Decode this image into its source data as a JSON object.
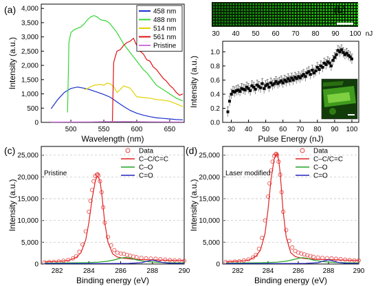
{
  "chart_data": [
    {
      "type": "line",
      "panel_label": "(a)",
      "xlabel": "Wavelength (nm)",
      "ylabel": "Intensity (a.u.)",
      "xlim": [
        455,
        672
      ],
      "ylim": [
        0,
        4150
      ],
      "x_ticks": [
        500,
        550,
        600,
        650
      ],
      "y_ticks": [
        0,
        500,
        1000,
        1500,
        2000,
        2500,
        3000,
        3500,
        4000
      ],
      "y_tick_labels": [
        "0",
        "500",
        "1,000",
        "1,500",
        "2,000",
        "2,500",
        "3,000",
        "3,500",
        "4,000"
      ],
      "legend_position": "top-right",
      "series": [
        {
          "name": "458 nm",
          "color": "#1a2ecc",
          "x": [
            470,
            480,
            490,
            500,
            510,
            520,
            530,
            540,
            550,
            560,
            570,
            580,
            590,
            600,
            610,
            620,
            630,
            640,
            650,
            660,
            670
          ],
          "y": [
            480,
            800,
            1050,
            1190,
            1240,
            1200,
            1140,
            1060,
            980,
            880,
            720,
            560,
            420,
            320,
            250,
            200,
            160,
            140,
            120,
            100,
            90
          ]
        },
        {
          "name": "488 nm",
          "color": "#33d633",
          "x": [
            495,
            497,
            500,
            505,
            510,
            515,
            520,
            525,
            530,
            535,
            540,
            545,
            550,
            555,
            560,
            565,
            570,
            575,
            580,
            585,
            590,
            595,
            600,
            605,
            610,
            615,
            620,
            625,
            630,
            640,
            650,
            660,
            670
          ],
          "y": [
            350,
            2800,
            3150,
            3250,
            3300,
            3350,
            3450,
            3600,
            3700,
            3750,
            3700,
            3600,
            3580,
            3550,
            3450,
            3300,
            3150,
            2950,
            2750,
            2600,
            2450,
            2300,
            2150,
            2000,
            1850,
            1750,
            1600,
            1450,
            1300,
            1150,
            1000,
            850,
            750
          ]
        },
        {
          "name": "514 nm",
          "color": "#e0d000",
          "x": [
            520,
            525,
            530,
            535,
            540,
            545,
            550,
            555,
            560,
            565,
            570,
            575,
            580,
            590,
            600,
            610,
            620,
            630,
            640,
            650,
            660,
            670
          ],
          "y": [
            1150,
            1180,
            1250,
            1300,
            1320,
            1330,
            1300,
            1380,
            1350,
            1250,
            1050,
            1150,
            1280,
            1200,
            900,
            870,
            850,
            800,
            780,
            740,
            650,
            550
          ]
        },
        {
          "name": "561 nm",
          "color": "#e01010",
          "x": [
            563,
            565,
            568,
            570,
            575,
            580,
            585,
            590,
            595,
            600,
            605,
            610,
            615,
            620,
            625,
            630,
            635,
            640,
            645,
            650,
            655,
            660,
            665,
            670
          ],
          "y": [
            0,
            2100,
            2350,
            2500,
            2550,
            2700,
            2800,
            2850,
            2950,
            2700,
            2500,
            2400,
            2200,
            2150,
            1950,
            1850,
            1700,
            1550,
            1450,
            1300,
            1200,
            1050,
            950,
            1000
          ]
        },
        {
          "name": "Pristine",
          "color": "#d070e0",
          "x": [
            470,
            500,
            530,
            560,
            590,
            620,
            650,
            670
          ],
          "y": [
            12,
            14,
            18,
            28,
            26,
            20,
            16,
            14
          ]
        }
      ]
    },
    {
      "type": "scatter",
      "panel_label": "(b)",
      "xlabel": "Pulse Energy (nJ)",
      "ylabel": "Intensity (a.u.)",
      "xlim": [
        25,
        104
      ],
      "ylim": [
        0,
        1.15
      ],
      "x_ticks": [
        30,
        40,
        50,
        60,
        70,
        80,
        90,
        100
      ],
      "y_ticks": [
        0.0,
        0.2,
        0.4,
        0.6,
        0.8,
        1.0
      ],
      "y_tick_labels": [
        "0.0",
        "0.2",
        "0.4",
        "0.6",
        "0.8",
        "1.0"
      ],
      "strip_ticks": [
        30,
        40,
        50,
        60,
        70,
        80,
        90,
        100
      ],
      "strip_unit": "nJ",
      "series": [
        {
          "name": "",
          "color": "#000000",
          "x": [
            28,
            29,
            30,
            31,
            32,
            33,
            34,
            35,
            36,
            37,
            38,
            39,
            40,
            41,
            42,
            43,
            44,
            45,
            46,
            47,
            48,
            49,
            50,
            51,
            52,
            53,
            54,
            55,
            56,
            57,
            58,
            59,
            60,
            61,
            62,
            63,
            64,
            65,
            66,
            67,
            68,
            69,
            70,
            71,
            72,
            73,
            74,
            75,
            76,
            77,
            78,
            79,
            80,
            81,
            82,
            83,
            84,
            85,
            86,
            87,
            88,
            89,
            90,
            91,
            92,
            93,
            94,
            95,
            96,
            97,
            98,
            99,
            100
          ],
          "y": [
            0.15,
            0.3,
            0.4,
            0.44,
            0.43,
            0.45,
            0.46,
            0.44,
            0.48,
            0.47,
            0.46,
            0.5,
            0.48,
            0.45,
            0.52,
            0.5,
            0.47,
            0.53,
            0.51,
            0.49,
            0.55,
            0.48,
            0.52,
            0.54,
            0.5,
            0.56,
            0.53,
            0.55,
            0.58,
            0.55,
            0.57,
            0.59,
            0.56,
            0.6,
            0.58,
            0.62,
            0.59,
            0.63,
            0.6,
            0.64,
            0.62,
            0.65,
            0.63,
            0.66,
            0.68,
            0.65,
            0.7,
            0.72,
            0.68,
            0.74,
            0.7,
            0.73,
            0.78,
            0.75,
            0.8,
            0.78,
            0.84,
            0.82,
            0.86,
            0.84,
            0.8,
            0.88,
            0.92,
            0.96,
            1.02,
            1.0,
            1.03,
            0.99,
            0.96,
            0.98,
            0.95,
            0.93,
            0.9
          ],
          "yerr": 0.07
        }
      ]
    },
    {
      "type": "line",
      "panel_label": "(c)",
      "annotation": "Pristine",
      "xlabel": "Binding energy (eV)",
      "ylabel": "Intensity (a.u.)",
      "xlim": [
        281,
        290
      ],
      "ylim": [
        0,
        27000
      ],
      "x_ticks": [
        282,
        284,
        286,
        288,
        290
      ],
      "y_ticks": [
        0,
        5000,
        10000,
        15000,
        20000,
        25000
      ],
      "y_tick_labels": [
        "0",
        "5,000",
        "10,000",
        "15,000",
        "20,000",
        "25,000"
      ],
      "legend_position": "top-right",
      "data_points": {
        "name": "Data",
        "color": "#e84040",
        "x": [
          281.2,
          281.5,
          281.8,
          282.1,
          282.4,
          282.7,
          283.0,
          283.2,
          283.4,
          283.6,
          283.8,
          284.0,
          284.1,
          284.2,
          284.3,
          284.4,
          284.5,
          284.55,
          284.6,
          284.7,
          284.8,
          284.9,
          285.0,
          285.2,
          285.4,
          285.6,
          285.8,
          286.0,
          286.2,
          286.4,
          286.6,
          286.8,
          287.0,
          287.3,
          287.6,
          287.9,
          288.2,
          288.5,
          288.8,
          289.1,
          289.4,
          289.7,
          290.0
        ],
        "y": [
          400,
          450,
          500,
          600,
          750,
          950,
          1300,
          1800,
          2800,
          4500,
          7500,
          12000,
          14500,
          17000,
          19000,
          20200,
          20500,
          20600,
          20300,
          19000,
          16500,
          13000,
          9500,
          6200,
          4300,
          3200,
          2600,
          2400,
          2300,
          2100,
          1900,
          1700,
          1550,
          1400,
          1300,
          1250,
          1200,
          1100,
          1000,
          900,
          850,
          800,
          750
        ]
      },
      "series": [
        {
          "name": "C–C/C=C",
          "color": "#e02020",
          "x": [
            281.2,
            281.6,
            282.0,
            282.4,
            282.8,
            283.2,
            283.5,
            283.8,
            284.0,
            284.2,
            284.4,
            284.5,
            284.6,
            284.7,
            284.8,
            285.0,
            285.2,
            285.5,
            285.8,
            286.2,
            286.6,
            287.0,
            287.5,
            288.0,
            288.5,
            289.0,
            289.5,
            290.0
          ],
          "y": [
            500,
            550,
            600,
            700,
            900,
            1500,
            2600,
            5500,
            9500,
            15000,
            19000,
            20000,
            20000,
            19000,
            16500,
            9500,
            5000,
            2300,
            1600,
            1300,
            1150,
            1050,
            1000,
            950,
            900,
            850,
            800,
            780
          ]
        },
        {
          "name": "C–O",
          "color": "#20a020",
          "x": [
            281.2,
            283.0,
            284.0,
            284.6,
            285.2,
            285.6,
            286.0,
            286.3,
            286.6,
            287.0,
            287.5,
            288.0,
            288.5,
            289.0,
            289.5,
            290.0
          ],
          "y": [
            200,
            260,
            330,
            420,
            650,
            950,
            1350,
            1500,
            1350,
            950,
            620,
            450,
            360,
            300,
            260,
            230
          ]
        },
        {
          "name": "C=O",
          "color": "#2020c0",
          "x": [
            281.2,
            285.0,
            286.5,
            287.3,
            287.7,
            288.0,
            288.3,
            288.7,
            289.2,
            290.0
          ],
          "y": [
            100,
            110,
            150,
            300,
            650,
            900,
            650,
            300,
            150,
            110
          ]
        }
      ]
    },
    {
      "type": "line",
      "panel_label": "(d)",
      "annotation": "Laser modified",
      "xlabel": "Binding energy (eV)",
      "ylabel": "Intensity (a.u.)",
      "xlim": [
        281,
        290
      ],
      "ylim": [
        0,
        27000
      ],
      "x_ticks": [
        282,
        284,
        286,
        288,
        290
      ],
      "y_ticks": [
        0,
        5000,
        10000,
        15000,
        20000,
        25000
      ],
      "y_tick_labels": [
        "0",
        "5,000",
        "10,000",
        "15,000",
        "20,000",
        "25,000"
      ],
      "legend_position": "top-right",
      "data_points": {
        "name": "Data",
        "color": "#e84040",
        "x": [
          281.2,
          281.5,
          281.8,
          282.1,
          282.4,
          282.7,
          283.0,
          283.2,
          283.4,
          283.6,
          283.8,
          284.0,
          284.1,
          284.2,
          284.3,
          284.4,
          284.5,
          284.55,
          284.6,
          284.7,
          284.8,
          284.9,
          285.0,
          285.2,
          285.4,
          285.6,
          285.8,
          286.0,
          286.2,
          286.4,
          286.6,
          286.8,
          287.0,
          287.3,
          287.6,
          287.9,
          288.2,
          288.5,
          288.8,
          289.1,
          289.4,
          289.7,
          290.0
        ],
        "y": [
          450,
          500,
          550,
          650,
          800,
          1050,
          1500,
          2100,
          3500,
          6000,
          10000,
          15500,
          18500,
          21500,
          23500,
          24800,
          25200,
          25300,
          25000,
          23500,
          20500,
          16500,
          12000,
          7800,
          5300,
          3800,
          3000,
          2600,
          2400,
          2200,
          2000,
          1800,
          1650,
          1500,
          1400,
          1350,
          1300,
          1200,
          1100,
          1000,
          900,
          850,
          800
        ]
      },
      "series": [
        {
          "name": "C–C/C=C",
          "color": "#e02020",
          "x": [
            281.2,
            281.6,
            282.0,
            282.4,
            282.8,
            283.2,
            283.5,
            283.8,
            284.0,
            284.2,
            284.4,
            284.5,
            284.6,
            284.7,
            284.8,
            285.0,
            285.2,
            285.5,
            285.8,
            286.2,
            286.6,
            287.0,
            287.5,
            288.0,
            288.5,
            289.0,
            289.5,
            290.0
          ],
          "y": [
            500,
            550,
            650,
            750,
            1000,
            1800,
            3200,
            7000,
            12500,
            19500,
            24000,
            25000,
            25200,
            24000,
            21000,
            12000,
            6200,
            2600,
            1700,
            1350,
            1200,
            1100,
            1050,
            1000,
            950,
            900,
            850,
            800
          ]
        },
        {
          "name": "C–O",
          "color": "#20a020",
          "x": [
            281.2,
            283.0,
            284.0,
            284.6,
            285.2,
            285.6,
            286.0,
            286.3,
            286.6,
            287.0,
            287.5,
            288.0,
            288.5,
            289.0,
            289.5,
            290.0
          ],
          "y": [
            200,
            260,
            330,
            420,
            650,
            950,
            1300,
            1450,
            1300,
            900,
            600,
            450,
            360,
            300,
            260,
            230
          ]
        },
        {
          "name": "C=O",
          "color": "#2020c0",
          "x": [
            281.2,
            285.0,
            286.5,
            287.3,
            287.7,
            288.0,
            288.3,
            288.7,
            289.2,
            290.0
          ],
          "y": [
            100,
            110,
            150,
            300,
            700,
            950,
            700,
            320,
            150,
            110
          ]
        }
      ]
    }
  ]
}
